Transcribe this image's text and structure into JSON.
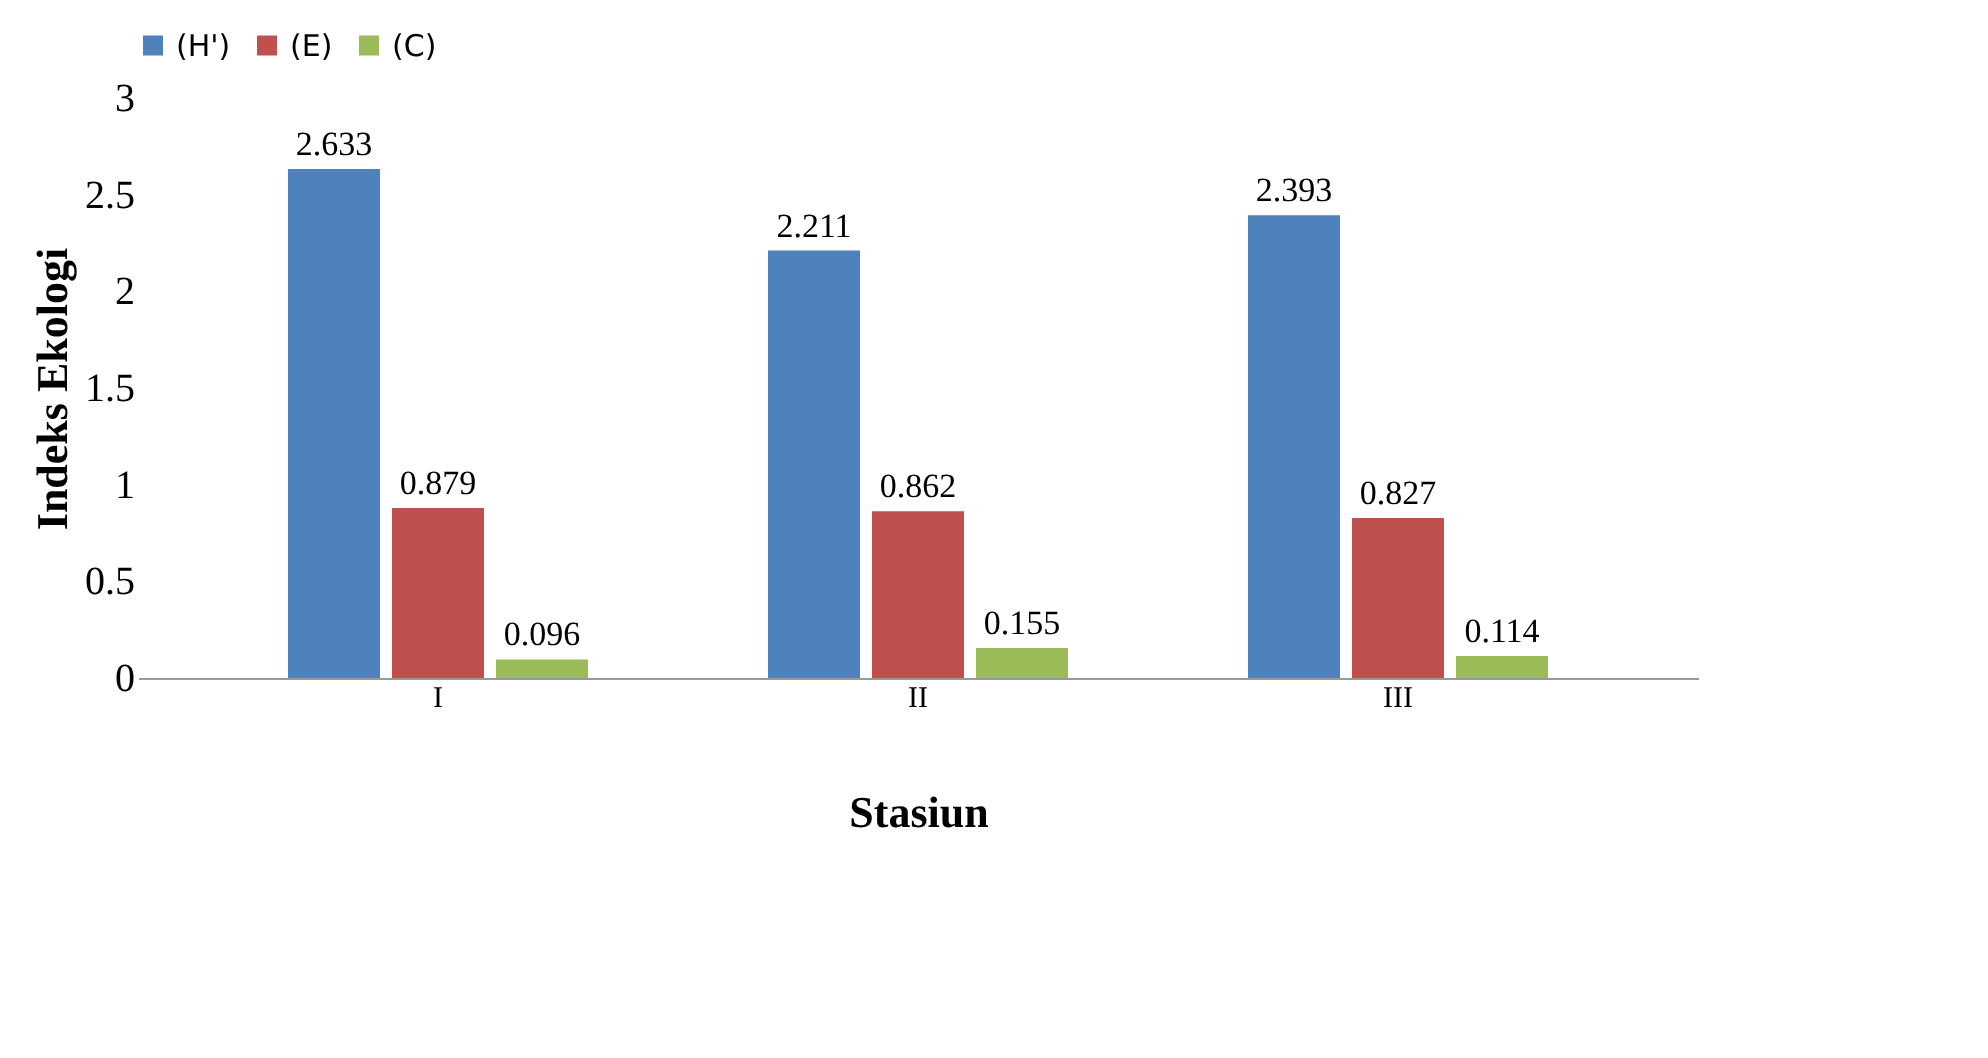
{
  "chart_data": {
    "type": "bar",
    "xlabel": "Stasiun",
    "ylabel": "Indeks Ekologi",
    "categories": [
      "I",
      "II",
      "III"
    ],
    "series": [
      {
        "name": "(H')",
        "color": "#4f81bd",
        "values": [
          2.633,
          2.211,
          2.393
        ]
      },
      {
        "name": "(E)",
        "color": "#c0504d",
        "values": [
          0.879,
          0.862,
          0.827
        ]
      },
      {
        "name": "(C)",
        "color": "#9bbb59",
        "values": [
          0.096,
          0.155,
          0.114
        ]
      }
    ],
    "ylim": [
      0,
      3
    ],
    "yticks": [
      0,
      0.5,
      1,
      1.5,
      2,
      2.5,
      3
    ],
    "data_labels": true,
    "legend": "top",
    "grid": false
  }
}
